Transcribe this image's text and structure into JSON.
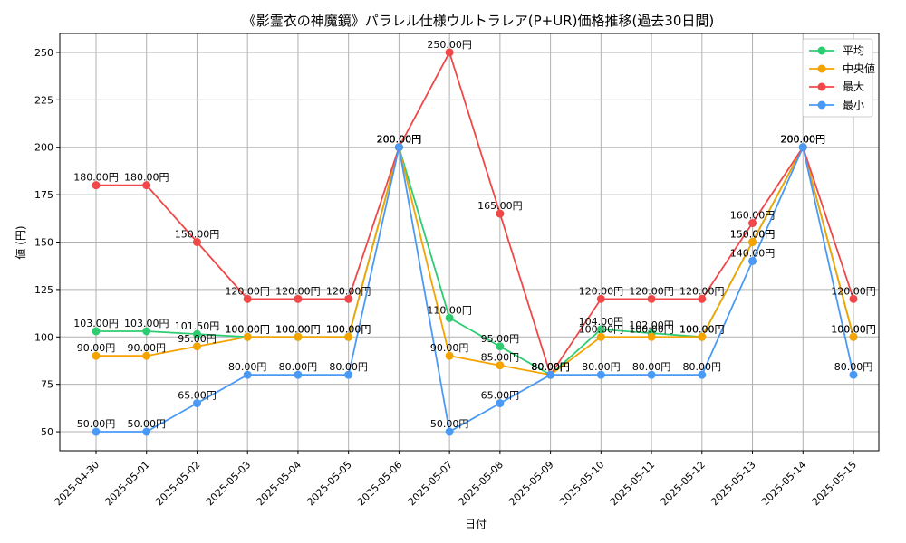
{
  "chart_data": {
    "type": "line",
    "title": "《影霊衣の神魔鏡》パラレル仕様ウルトラレア(P+UR)価格推移(過去30日間)",
    "xlabel": "日付",
    "ylabel": "値 (円)",
    "ylim": [
      40,
      260
    ],
    "yticks": [
      50,
      75,
      100,
      125,
      150,
      175,
      200,
      225,
      250
    ],
    "grid": true,
    "legend_position": "top-right",
    "categories": [
      "2025-04-30",
      "2025-05-01",
      "2025-05-02",
      "2025-05-03",
      "2025-05-04",
      "2025-05-05",
      "2025-05-06",
      "2025-05-07",
      "2025-05-08",
      "2025-05-09",
      "2025-05-10",
      "2025-05-11",
      "2025-05-12",
      "2025-05-13",
      "2025-05-14",
      "2025-05-15"
    ],
    "series": [
      {
        "name": "平均",
        "color": "#2ecc71",
        "values": [
          103,
          103,
          101.5,
          100,
          100,
          100,
          200,
          110,
          95,
          80,
          104,
          102,
          100,
          150,
          200,
          100
        ]
      },
      {
        "name": "中央値",
        "color": "#f5a300",
        "values": [
          90,
          90,
          95,
          100,
          100,
          100,
          200,
          90,
          85,
          80,
          100,
          100,
          100,
          150,
          200,
          100
        ]
      },
      {
        "name": "最大",
        "color": "#f04848",
        "values": [
          180,
          180,
          150,
          120,
          120,
          120,
          200,
          250,
          165,
          80,
          120,
          120,
          120,
          160,
          200,
          120
        ]
      },
      {
        "name": "最小",
        "color": "#4a9af5",
        "values": [
          50,
          50,
          65,
          80,
          80,
          80,
          200,
          50,
          65,
          80,
          80,
          80,
          80,
          140,
          200,
          80
        ]
      }
    ],
    "value_suffix": "円"
  }
}
